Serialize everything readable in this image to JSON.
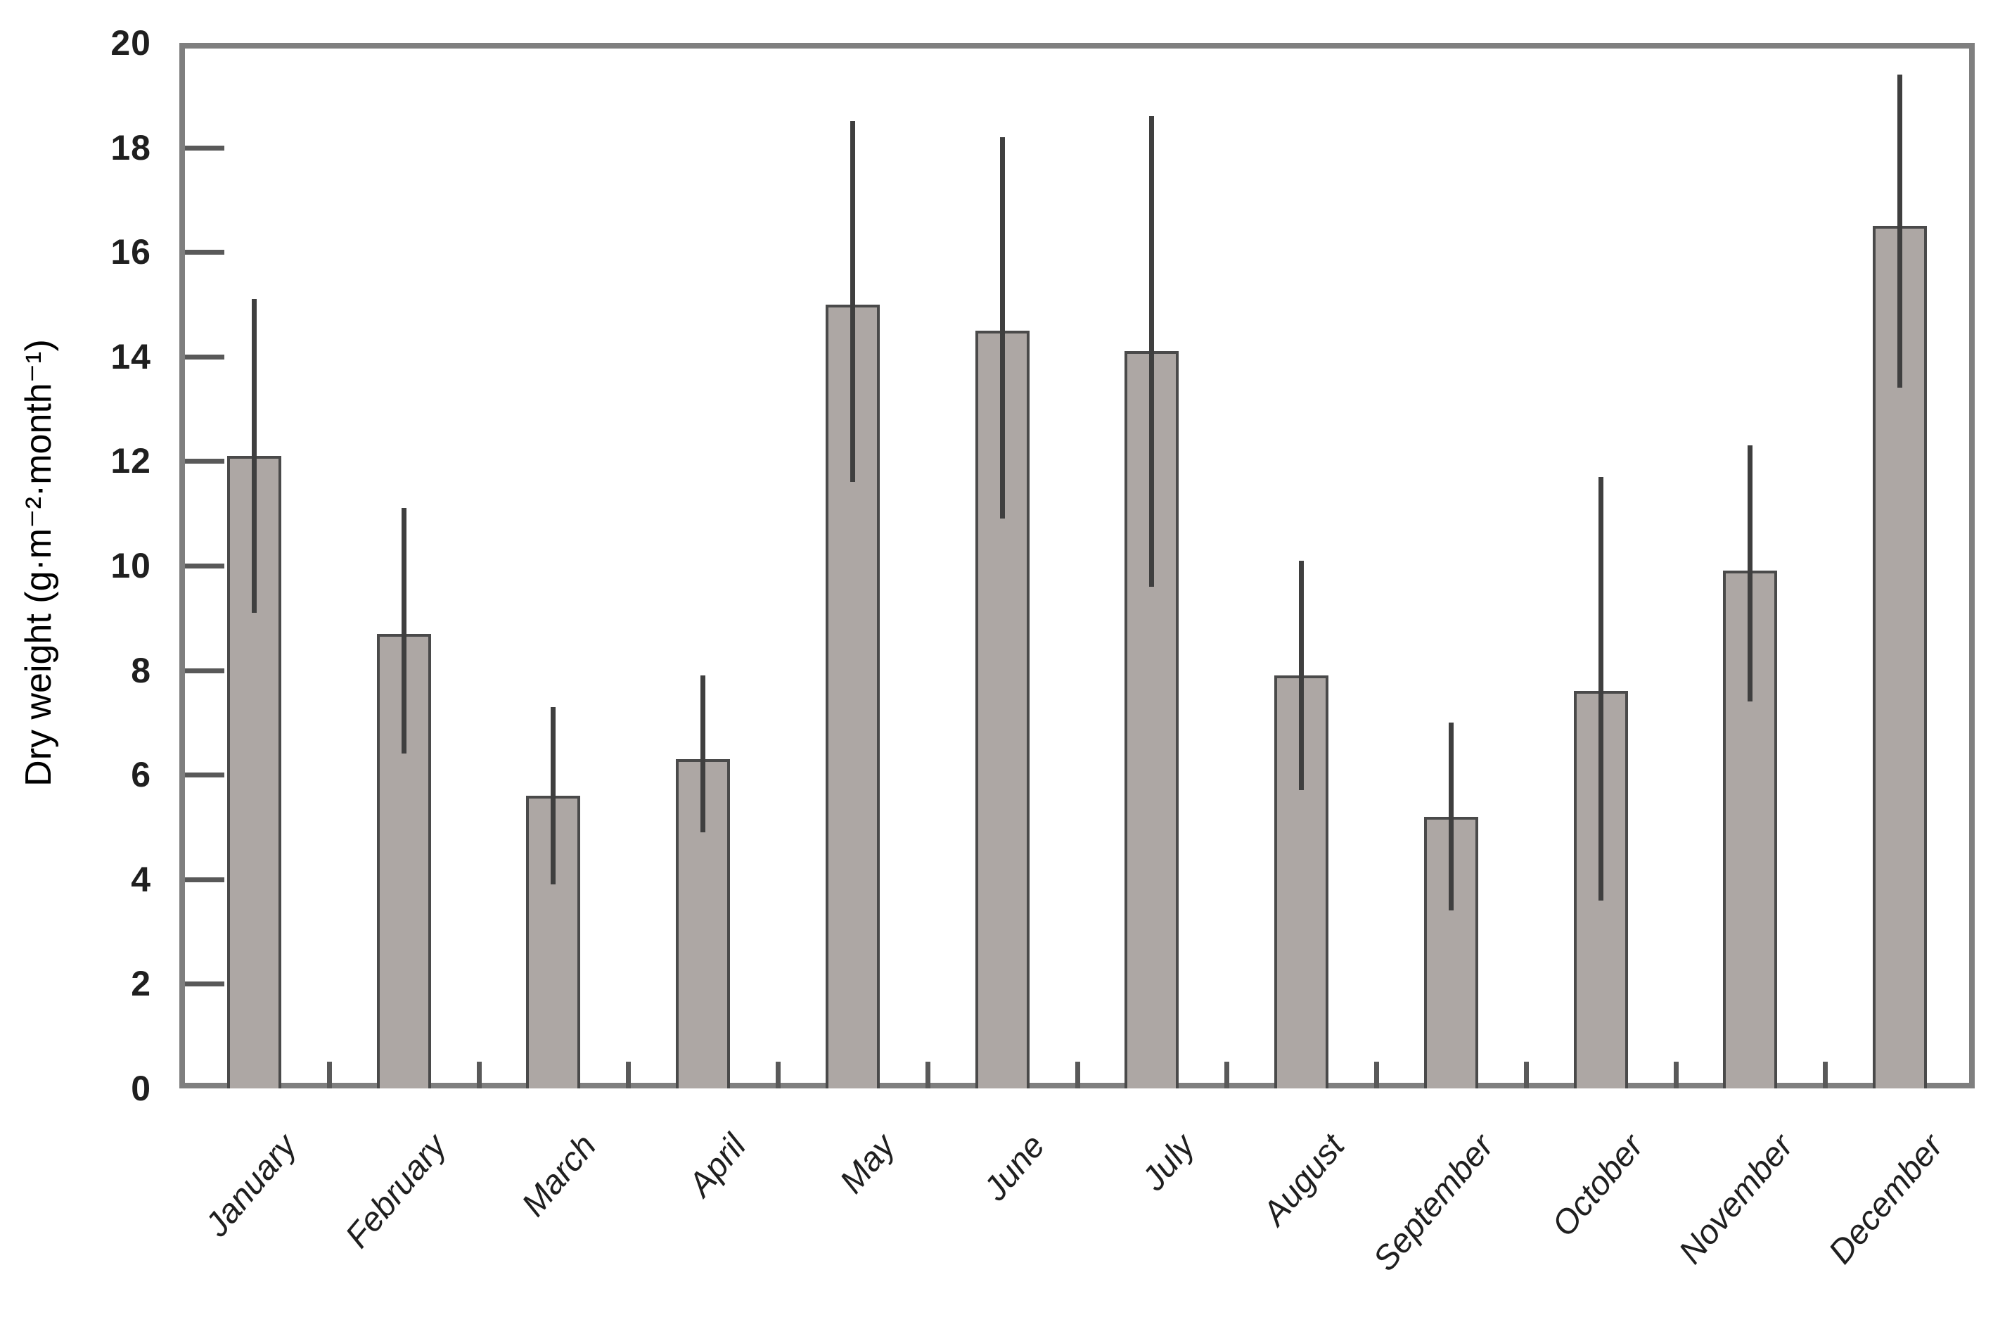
{
  "chart_data": {
    "type": "bar",
    "title": "",
    "xlabel": "",
    "ylabel": "Dry weight (g·m⁻²·month⁻¹)",
    "categories": [
      "January",
      "February",
      "March",
      "April",
      "May",
      "June",
      "July",
      "August",
      "September",
      "October",
      "November",
      "December"
    ],
    "series": [
      {
        "name": "Dry weight",
        "values": [
          12.1,
          8.7,
          5.6,
          6.3,
          15.0,
          14.5,
          14.1,
          7.9,
          5.2,
          7.6,
          9.9,
          16.5
        ],
        "error_low": [
          9.1,
          6.4,
          3.9,
          4.9,
          11.6,
          10.9,
          9.6,
          5.7,
          3.4,
          3.6,
          7.4,
          13.4
        ],
        "error_high": [
          15.1,
          11.1,
          7.3,
          7.9,
          18.5,
          18.2,
          18.6,
          10.1,
          7.0,
          11.7,
          12.3,
          19.4
        ]
      }
    ],
    "ylim": [
      0,
      20
    ],
    "yticks": [
      0,
      2,
      4,
      6,
      8,
      10,
      12,
      14,
      16,
      18,
      20
    ],
    "grid": false,
    "legend_position": "none",
    "error_bars": true,
    "colors": {
      "bar_fill": "#ada7a4",
      "bar_border": "#4a4a4a",
      "error_bar": "#3f3f3f",
      "axis": "#7f7f7f",
      "tick_mark": "#595959",
      "text": "#1f1f1f"
    }
  }
}
